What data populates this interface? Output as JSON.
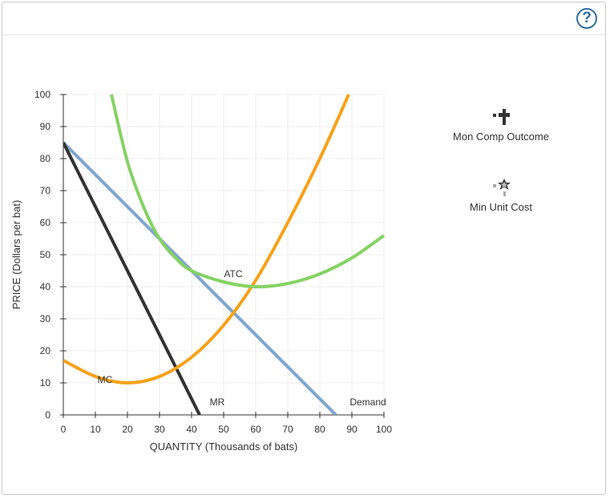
{
  "help_label": "?",
  "tools": [
    {
      "label": "Mon Comp Outcome",
      "icon": "black-cross-marker-icon"
    },
    {
      "label": "Min Unit Cost",
      "icon": "gray-star-marker-icon"
    }
  ],
  "chart_data": {
    "type": "line",
    "xlabel": "QUANTITY (Thousands of bats)",
    "ylabel": "PRICE (Dollars per bat)",
    "xlim": [
      0,
      100
    ],
    "ylim": [
      0,
      100
    ],
    "xticks": [
      0,
      10,
      20,
      30,
      40,
      50,
      60,
      70,
      80,
      90,
      100
    ],
    "yticks": [
      0,
      10,
      20,
      30,
      40,
      50,
      60,
      70,
      80,
      90,
      100
    ],
    "grid": true,
    "series": [
      {
        "name": "Demand",
        "color": "#7ea6d0",
        "points": [
          [
            0,
            85
          ],
          [
            85,
            0
          ]
        ]
      },
      {
        "name": "MR",
        "color": "#333333",
        "points": [
          [
            0,
            85
          ],
          [
            42.5,
            0
          ]
        ]
      },
      {
        "name": "MC",
        "color": "#f7a11a",
        "points": [
          [
            0,
            17
          ],
          [
            10,
            12
          ],
          [
            20,
            10
          ],
          [
            30,
            12
          ],
          [
            40,
            18
          ],
          [
            50,
            28
          ],
          [
            60,
            42
          ],
          [
            70,
            60
          ],
          [
            80,
            80
          ],
          [
            89,
            100
          ]
        ]
      },
      {
        "name": "ATC",
        "color": "#85d264",
        "points": [
          [
            15,
            100
          ],
          [
            20,
            79
          ],
          [
            25,
            65
          ],
          [
            30,
            55
          ],
          [
            35,
            49
          ],
          [
            40,
            45
          ],
          [
            50,
            41.5
          ],
          [
            60,
            40
          ],
          [
            70,
            41
          ],
          [
            80,
            44
          ],
          [
            90,
            49
          ],
          [
            100,
            56
          ]
        ]
      }
    ],
    "annotations": [
      {
        "text": "ATC",
        "x": 53,
        "y": 43
      },
      {
        "text": "MC",
        "x": 13,
        "y": 10
      },
      {
        "text": "MR",
        "x": 48,
        "y": 3
      },
      {
        "text": "Demand",
        "x": 95,
        "y": 3
      }
    ]
  }
}
